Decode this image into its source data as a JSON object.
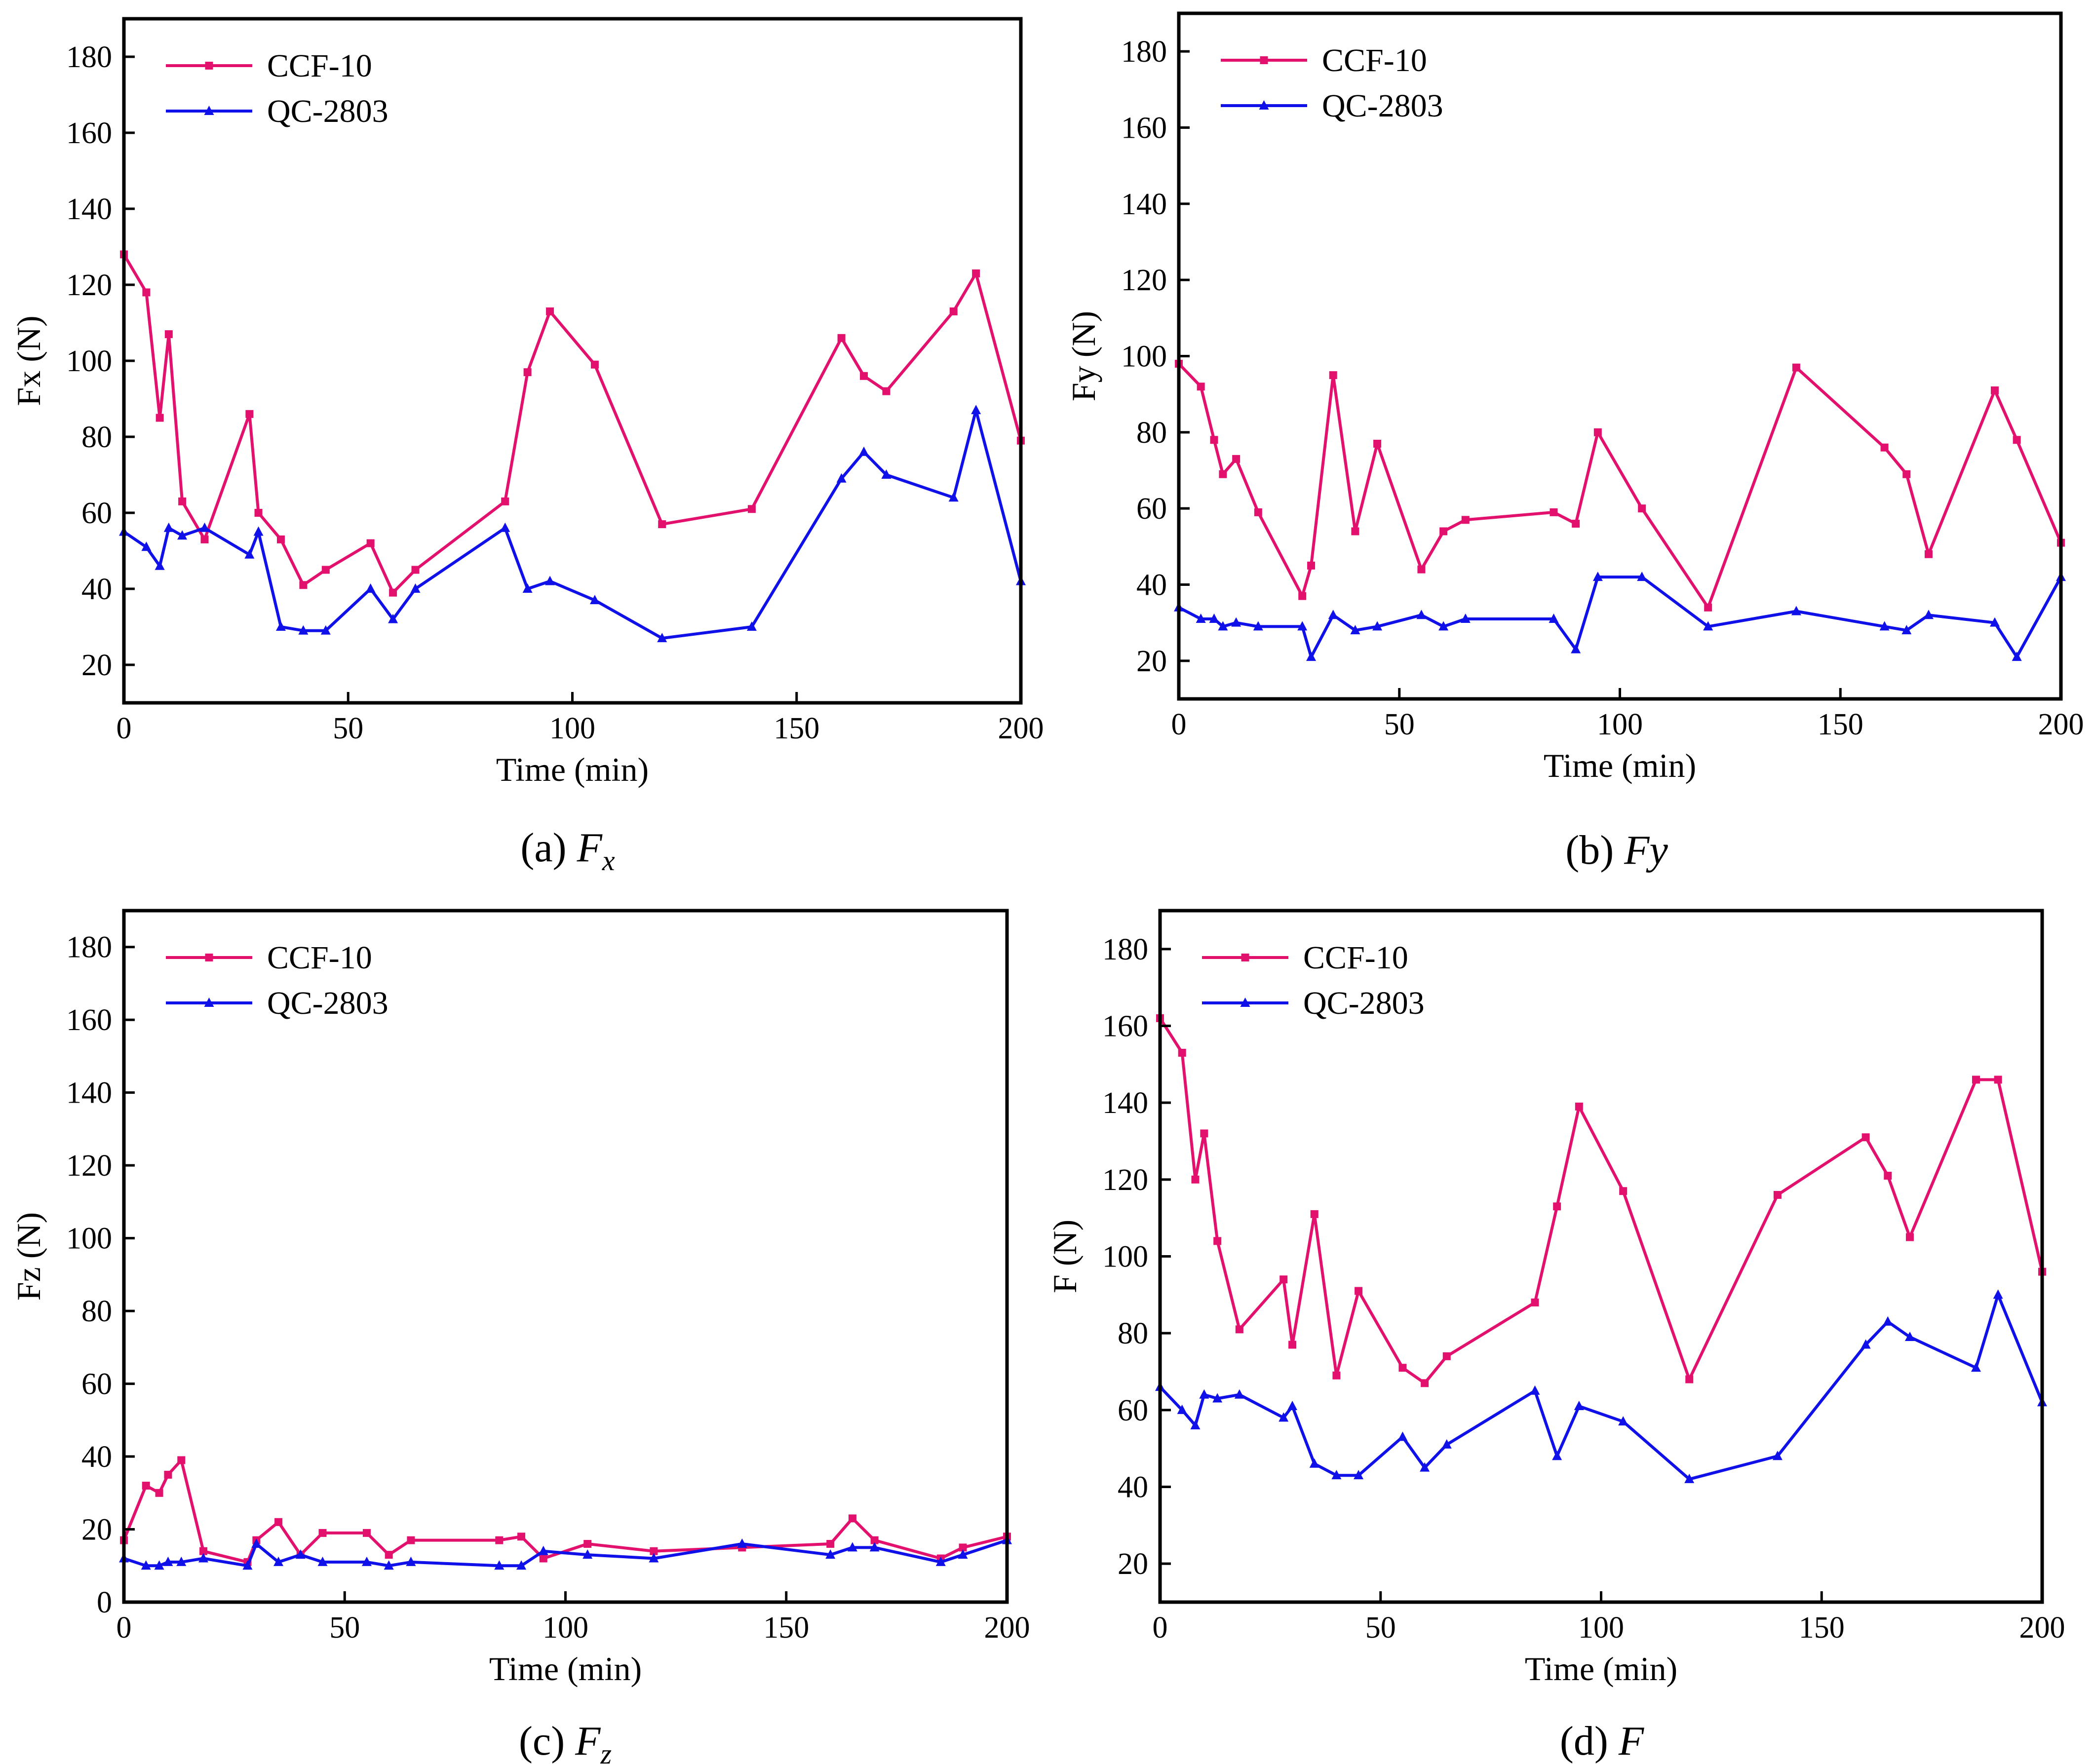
{
  "colors": {
    "ccf": "#E3116E",
    "qc": "#1010E8",
    "axis": "#000000"
  },
  "legend": {
    "series": [
      "CCF-10",
      "QC-2803"
    ],
    "position": "top-left"
  },
  "chart_data": [
    {
      "type": "line",
      "title": "",
      "caption": {
        "prefix": "(a) ",
        "main": "F",
        "sub": "x"
      },
      "xlabel": "Time (min)",
      "ylabel": "Fx (N)",
      "xlim": [
        0,
        200
      ],
      "ylim": [
        10,
        190
      ],
      "xticks": [
        0,
        50,
        100,
        150,
        200
      ],
      "yticks": [
        20,
        40,
        60,
        80,
        100,
        120,
        140,
        160,
        180
      ],
      "series": [
        {
          "name": "CCF-10",
          "marker": "square",
          "x": [
            0,
            5,
            8,
            10,
            13,
            18,
            28,
            30,
            35,
            40,
            45,
            55,
            60,
            65,
            85,
            90,
            95,
            105,
            120,
            140,
            160,
            165,
            170,
            185,
            190,
            200
          ],
          "y": [
            128,
            118,
            85,
            107,
            63,
            53,
            86,
            60,
            53,
            41,
            45,
            52,
            39,
            45,
            63,
            97,
            113,
            99,
            57,
            61,
            106,
            96,
            92,
            113,
            123,
            79
          ]
        },
        {
          "name": "QC-2803",
          "marker": "triangle",
          "x": [
            0,
            5,
            8,
            10,
            13,
            18,
            28,
            30,
            35,
            40,
            45,
            55,
            60,
            65,
            85,
            90,
            95,
            105,
            120,
            140,
            160,
            165,
            170,
            185,
            190,
            200
          ],
          "y": [
            55,
            51,
            46,
            56,
            54,
            56,
            49,
            55,
            30,
            29,
            29,
            40,
            32,
            40,
            56,
            40,
            42,
            37,
            27,
            30,
            69,
            76,
            70,
            64,
            87,
            42
          ]
        }
      ]
    },
    {
      "type": "line",
      "title": "",
      "caption": {
        "prefix": "(b) ",
        "main": "Fy",
        "sub": ""
      },
      "xlabel": "Time (min)",
      "ylabel": "Fy (N)",
      "xlim": [
        0,
        200
      ],
      "ylim": [
        10,
        190
      ],
      "xticks": [
        0,
        50,
        100,
        150,
        200
      ],
      "yticks": [
        20,
        40,
        60,
        80,
        100,
        120,
        140,
        160,
        180
      ],
      "series": [
        {
          "name": "CCF-10",
          "marker": "square",
          "x": [
            0,
            5,
            8,
            10,
            13,
            18,
            28,
            30,
            35,
            40,
            45,
            55,
            60,
            65,
            85,
            90,
            95,
            105,
            120,
            140,
            160,
            165,
            170,
            185,
            190,
            200
          ],
          "y": [
            98,
            92,
            78,
            69,
            73,
            59,
            37,
            45,
            95,
            54,
            77,
            44,
            54,
            57,
            59,
            56,
            80,
            60,
            34,
            97,
            76,
            69,
            48,
            91,
            78,
            51
          ]
        },
        {
          "name": "QC-2803",
          "marker": "triangle",
          "x": [
            0,
            5,
            8,
            10,
            13,
            18,
            28,
            30,
            35,
            40,
            45,
            55,
            60,
            65,
            85,
            90,
            95,
            105,
            120,
            140,
            160,
            165,
            170,
            185,
            190,
            200
          ],
          "y": [
            34,
            31,
            31,
            29,
            30,
            29,
            29,
            21,
            32,
            28,
            29,
            32,
            29,
            31,
            31,
            23,
            42,
            42,
            29,
            33,
            29,
            28,
            32,
            30,
            21,
            42
          ]
        }
      ]
    },
    {
      "type": "line",
      "title": "",
      "caption": {
        "prefix": "(c) ",
        "main": "F",
        "sub": "z"
      },
      "xlabel": "Time (min)",
      "ylabel": "Fz (N)",
      "xlim": [
        0,
        200
      ],
      "ylim": [
        0,
        190
      ],
      "xticks": [
        0,
        50,
        100,
        150,
        200
      ],
      "yticks": [
        0,
        20,
        40,
        60,
        80,
        100,
        120,
        140,
        160,
        180
      ],
      "series": [
        {
          "name": "CCF-10",
          "marker": "square",
          "x": [
            0,
            5,
            8,
            10,
            13,
            18,
            28,
            30,
            35,
            40,
            45,
            55,
            60,
            65,
            85,
            90,
            95,
            105,
            120,
            140,
            160,
            165,
            170,
            185,
            190,
            200
          ],
          "y": [
            17,
            32,
            30,
            35,
            39,
            14,
            11,
            17,
            22,
            13,
            19,
            19,
            13,
            17,
            17,
            18,
            12,
            16,
            14,
            15,
            16,
            23,
            17,
            12,
            15,
            18
          ]
        },
        {
          "name": "QC-2803",
          "marker": "triangle",
          "x": [
            0,
            5,
            8,
            10,
            13,
            18,
            28,
            30,
            35,
            40,
            45,
            55,
            60,
            65,
            85,
            90,
            95,
            105,
            120,
            140,
            160,
            165,
            170,
            185,
            190,
            200
          ],
          "y": [
            12,
            10,
            10,
            11,
            11,
            12,
            10,
            16,
            11,
            13,
            11,
            11,
            10,
            11,
            10,
            10,
            14,
            13,
            12,
            16,
            13,
            15,
            15,
            11,
            13,
            17
          ]
        }
      ]
    },
    {
      "type": "line",
      "title": "",
      "caption": {
        "prefix": "(d) ",
        "main": "F",
        "sub": ""
      },
      "xlabel": "Time (min)",
      "ylabel": "F (N)",
      "xlim": [
        0,
        200
      ],
      "ylim": [
        10,
        190
      ],
      "xticks": [
        0,
        50,
        100,
        150,
        200
      ],
      "yticks": [
        20,
        40,
        60,
        80,
        100,
        120,
        140,
        160,
        180
      ],
      "series": [
        {
          "name": "CCF-10",
          "marker": "square",
          "x": [
            0,
            5,
            8,
            10,
            13,
            18,
            28,
            30,
            35,
            40,
            45,
            55,
            60,
            65,
            85,
            90,
            95,
            105,
            120,
            140,
            160,
            165,
            170,
            185,
            190,
            200
          ],
          "y": [
            162,
            153,
            120,
            132,
            104,
            81,
            94,
            77,
            111,
            69,
            91,
            71,
            67,
            74,
            88,
            113,
            139,
            117,
            68,
            116,
            131,
            121,
            105,
            146,
            146,
            96
          ]
        },
        {
          "name": "QC-2803",
          "marker": "triangle",
          "x": [
            0,
            5,
            8,
            10,
            13,
            18,
            28,
            30,
            35,
            40,
            45,
            55,
            60,
            65,
            85,
            90,
            95,
            105,
            120,
            140,
            160,
            165,
            170,
            185,
            190,
            200
          ],
          "y": [
            66,
            60,
            56,
            64,
            63,
            64,
            58,
            61,
            46,
            43,
            43,
            53,
            45,
            51,
            65,
            48,
            61,
            57,
            42,
            48,
            77,
            83,
            79,
            71,
            90,
            62
          ]
        }
      ]
    }
  ]
}
